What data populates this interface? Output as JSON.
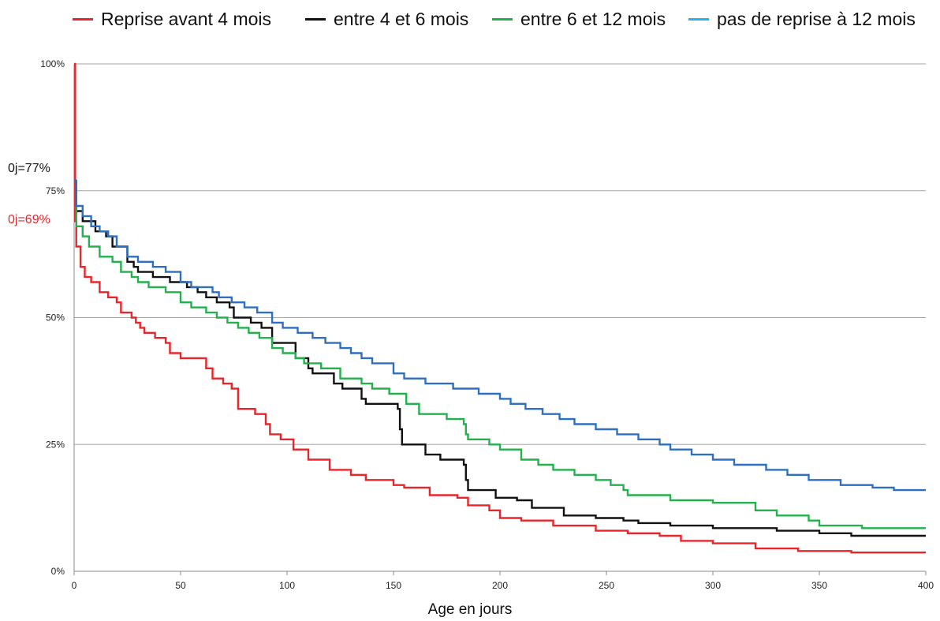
{
  "chart_data": {
    "type": "line",
    "title": "",
    "xlabel": "Age en jours",
    "ylabel": "",
    "xlim": [
      0,
      400
    ],
    "ylim": [
      0,
      100
    ],
    "x_ticks": [
      "0",
      "50",
      "100",
      "150",
      "200",
      "250",
      "300",
      "350",
      "400"
    ],
    "y_ticks": [
      "0%",
      "25%",
      "50%",
      "75%",
      "100%"
    ],
    "grid": "horizontal",
    "legend_position": "top",
    "annotations": [
      {
        "text": "0j=77%",
        "color": "#111111"
      },
      {
        "text": "0j=69%",
        "color": "#e8252b"
      }
    ],
    "series": [
      {
        "name": "Reprise avant 4 mois",
        "legend_color": "#e8252b",
        "line_color": "#e8252b",
        "points": [
          [
            0,
            100
          ],
          [
            0.5,
            69
          ],
          [
            1,
            64
          ],
          [
            3,
            60
          ],
          [
            5,
            58
          ],
          [
            8,
            57
          ],
          [
            12,
            55
          ],
          [
            16,
            54
          ],
          [
            20,
            53
          ],
          [
            22,
            51
          ],
          [
            27,
            50
          ],
          [
            29,
            49
          ],
          [
            31,
            48
          ],
          [
            33,
            47
          ],
          [
            38,
            46
          ],
          [
            43,
            45
          ],
          [
            45,
            43
          ],
          [
            50,
            42
          ],
          [
            62,
            40
          ],
          [
            65,
            38
          ],
          [
            70,
            37
          ],
          [
            74,
            36
          ],
          [
            77,
            32
          ],
          [
            85,
            31
          ],
          [
            90,
            29
          ],
          [
            92,
            27
          ],
          [
            97,
            26
          ],
          [
            103,
            24
          ],
          [
            110,
            22
          ],
          [
            120,
            20
          ],
          [
            130,
            19
          ],
          [
            137,
            18
          ],
          [
            150,
            17
          ],
          [
            155,
            16.5
          ],
          [
            167,
            15
          ],
          [
            180,
            14.5
          ],
          [
            185,
            13
          ],
          [
            195,
            12
          ],
          [
            200,
            10.5
          ],
          [
            210,
            10
          ],
          [
            225,
            9
          ],
          [
            245,
            8
          ],
          [
            260,
            7.5
          ],
          [
            275,
            7
          ],
          [
            285,
            6
          ],
          [
            300,
            5.5
          ],
          [
            320,
            4.5
          ],
          [
            340,
            4
          ],
          [
            365,
            3.7
          ],
          [
            400,
            3.7
          ]
        ]
      },
      {
        "name": "entre 4 et 6 mois",
        "legend_color": "#111111",
        "line_color": "#111111",
        "points": [
          [
            0,
            77
          ],
          [
            1,
            71
          ],
          [
            4,
            69
          ],
          [
            10,
            67
          ],
          [
            15,
            66
          ],
          [
            18,
            64
          ],
          [
            25,
            61
          ],
          [
            28,
            60
          ],
          [
            30,
            59
          ],
          [
            37,
            58
          ],
          [
            45,
            57
          ],
          [
            53,
            56
          ],
          [
            58,
            55
          ],
          [
            62,
            54
          ],
          [
            67,
            53
          ],
          [
            73,
            52
          ],
          [
            75,
            50
          ],
          [
            83,
            49
          ],
          [
            88,
            48
          ],
          [
            93,
            45
          ],
          [
            104,
            42
          ],
          [
            110,
            40
          ],
          [
            112,
            39
          ],
          [
            122,
            37
          ],
          [
            126,
            36
          ],
          [
            135,
            34
          ],
          [
            137,
            33
          ],
          [
            152,
            32
          ],
          [
            153,
            28
          ],
          [
            154,
            25
          ],
          [
            165,
            23
          ],
          [
            172,
            22
          ],
          [
            183,
            21
          ],
          [
            184,
            18
          ],
          [
            185,
            16
          ],
          [
            198,
            14.5
          ],
          [
            208,
            14
          ],
          [
            215,
            12.5
          ],
          [
            230,
            11
          ],
          [
            245,
            10.5
          ],
          [
            258,
            10
          ],
          [
            265,
            9.5
          ],
          [
            280,
            9
          ],
          [
            300,
            8.5
          ],
          [
            330,
            8
          ],
          [
            350,
            7.5
          ],
          [
            365,
            7
          ],
          [
            400,
            7
          ]
        ]
      },
      {
        "name": "entre 6 et 12 mois",
        "legend_color": "#22b14c",
        "line_color": "#22b14c",
        "points": [
          [
            0,
            77
          ],
          [
            1,
            68
          ],
          [
            4,
            66
          ],
          [
            7,
            64
          ],
          [
            12,
            62
          ],
          [
            18,
            61
          ],
          [
            22,
            59
          ],
          [
            27,
            58
          ],
          [
            30,
            57
          ],
          [
            35,
            56
          ],
          [
            43,
            55
          ],
          [
            50,
            53
          ],
          [
            55,
            52
          ],
          [
            62,
            51
          ],
          [
            67,
            50
          ],
          [
            72,
            49
          ],
          [
            77,
            48
          ],
          [
            82,
            47
          ],
          [
            87,
            46
          ],
          [
            93,
            44
          ],
          [
            98,
            43
          ],
          [
            104,
            42
          ],
          [
            108,
            41
          ],
          [
            116,
            40
          ],
          [
            125,
            38
          ],
          [
            135,
            37
          ],
          [
            140,
            36
          ],
          [
            148,
            35
          ],
          [
            156,
            33
          ],
          [
            162,
            31
          ],
          [
            175,
            30
          ],
          [
            183,
            29
          ],
          [
            184,
            27
          ],
          [
            185,
            26
          ],
          [
            195,
            25
          ],
          [
            200,
            24
          ],
          [
            210,
            22
          ],
          [
            218,
            21
          ],
          [
            225,
            20
          ],
          [
            235,
            19
          ],
          [
            245,
            18
          ],
          [
            252,
            17
          ],
          [
            258,
            16
          ],
          [
            260,
            15
          ],
          [
            280,
            14
          ],
          [
            300,
            13.5
          ],
          [
            320,
            12
          ],
          [
            330,
            11
          ],
          [
            345,
            10
          ],
          [
            350,
            9
          ],
          [
            370,
            8.5
          ],
          [
            400,
            8.5
          ]
        ]
      },
      {
        "name": "pas de reprise à 12 mois",
        "legend_color": "#20b4f0",
        "line_color": "#2e6fbf",
        "points": [
          [
            0,
            77
          ],
          [
            1,
            72
          ],
          [
            4,
            70
          ],
          [
            8,
            68
          ],
          [
            12,
            67
          ],
          [
            16,
            66
          ],
          [
            20,
            64
          ],
          [
            25,
            62
          ],
          [
            30,
            61
          ],
          [
            37,
            60
          ],
          [
            43,
            59
          ],
          [
            50,
            57
          ],
          [
            55,
            56
          ],
          [
            65,
            55
          ],
          [
            68,
            54
          ],
          [
            74,
            53
          ],
          [
            80,
            52
          ],
          [
            86,
            51
          ],
          [
            93,
            49
          ],
          [
            98,
            48
          ],
          [
            105,
            47
          ],
          [
            112,
            46
          ],
          [
            118,
            45
          ],
          [
            125,
            44
          ],
          [
            130,
            43
          ],
          [
            135,
            42
          ],
          [
            140,
            41
          ],
          [
            150,
            39
          ],
          [
            155,
            38
          ],
          [
            165,
            37
          ],
          [
            178,
            36
          ],
          [
            190,
            35
          ],
          [
            200,
            34
          ],
          [
            205,
            33
          ],
          [
            212,
            32
          ],
          [
            220,
            31
          ],
          [
            228,
            30
          ],
          [
            235,
            29
          ],
          [
            245,
            28
          ],
          [
            255,
            27
          ],
          [
            265,
            26
          ],
          [
            275,
            25
          ],
          [
            280,
            24
          ],
          [
            290,
            23
          ],
          [
            300,
            22
          ],
          [
            310,
            21
          ],
          [
            325,
            20
          ],
          [
            335,
            19
          ],
          [
            345,
            18
          ],
          [
            360,
            17
          ],
          [
            375,
            16.5
          ],
          [
            385,
            16
          ],
          [
            400,
            16
          ]
        ]
      }
    ]
  }
}
